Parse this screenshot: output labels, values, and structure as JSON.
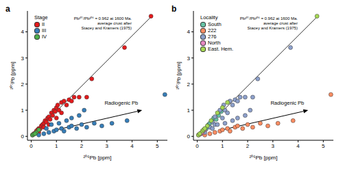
{
  "chart_data": [
    {
      "type": "scatter",
      "title": "a",
      "x_label": "²⁰⁶Pb [ppm]",
      "y_label": "²⁰⁷Pb [ppm]",
      "xlim": [
        -0.15,
        5.4
      ],
      "ylim": [
        -0.15,
        4.8
      ],
      "xticks": [
        0,
        1,
        2,
        3,
        4,
        5
      ],
      "yticks": [
        0,
        1,
        2,
        3,
        4
      ],
      "grid": false,
      "legend": "upper left",
      "legend_title": "Stage",
      "marker": "circle",
      "annotations": [
        "Pb²⁰⁷/Pb²⁰⁶ = 0.962 at 1600 Ma.",
        "average crust after",
        "Stacey and Kramers (1975)"
      ],
      "reference_line": {
        "x": [
          0,
          4.8
        ],
        "values": [
          0,
          4.62
        ],
        "color": "#000000"
      },
      "arrow": {
        "label": "Radiogenic Pb",
        "x": [
          1.0,
          4.4
        ],
        "values": [
          0.25,
          1.0
        ],
        "color": "#000000"
      },
      "series": [
        {
          "name": "II",
          "color": "#e41a1c",
          "x": [
            0.05,
            0.1,
            0.15,
            0.2,
            0.25,
            0.3,
            0.35,
            0.4,
            0.45,
            0.5,
            0.55,
            0.6,
            0.65,
            0.7,
            0.75,
            0.8,
            0.85,
            0.9,
            0.95,
            1.0,
            1.05,
            1.1,
            1.2,
            1.3,
            1.4,
            1.5,
            1.6,
            1.2,
            1.7,
            1.9,
            2.2,
            2.4,
            3.7,
            4.75,
            0.3,
            0.5,
            0.7,
            1.0
          ],
          "values": [
            0.05,
            0.1,
            0.12,
            0.2,
            0.25,
            0.3,
            0.28,
            0.4,
            0.45,
            0.5,
            0.6,
            0.55,
            0.7,
            0.75,
            0.65,
            0.9,
            0.8,
            1.0,
            0.95,
            1.1,
            1.2,
            1.0,
            1.3,
            1.35,
            1.2,
            1.4,
            1.35,
            0.9,
            1.5,
            1.5,
            1.5,
            2.2,
            3.4,
            4.6,
            0.15,
            0.35,
            0.45,
            0.7
          ]
        },
        {
          "name": "III",
          "color": "#377eb8",
          "x": [
            0.3,
            0.5,
            0.7,
            0.9,
            1.0,
            1.2,
            1.3,
            1.5,
            1.6,
            1.8,
            2.0,
            2.2,
            2.5,
            2.8,
            3.2,
            3.8,
            5.3,
            0.6,
            0.8,
            1.1,
            1.4,
            1.6,
            1.9,
            2.1
          ],
          "values": [
            0.05,
            0.1,
            0.15,
            0.2,
            0.25,
            0.3,
            0.2,
            0.35,
            0.4,
            0.3,
            0.45,
            0.35,
            0.5,
            0.4,
            0.5,
            0.6,
            1.6,
            0.3,
            0.45,
            0.5,
            0.6,
            0.7,
            0.8,
            1.0
          ]
        },
        {
          "name": "IV",
          "color": "#4daf4a",
          "x": [
            0.05,
            0.1,
            0.2,
            0.3,
            0.15
          ],
          "values": [
            0.05,
            0.08,
            0.15,
            0.25,
            0.1
          ]
        }
      ]
    },
    {
      "type": "scatter",
      "title": "b",
      "x_label": "²⁰⁶Pb [ppm]",
      "y_label": "²⁰⁷Pb [ppm]",
      "xlim": [
        -0.15,
        5.4
      ],
      "ylim": [
        -0.15,
        4.8
      ],
      "xticks": [
        0,
        1,
        2,
        3,
        4,
        5
      ],
      "yticks": [
        0,
        1,
        2,
        3,
        4
      ],
      "grid": false,
      "legend": "upper left",
      "legend_title": "Locality",
      "marker": "circle",
      "annotations": [
        "Pb²⁰⁷/Pb²⁰⁶ = 0.962 at 1600 Ma.",
        "average crust after",
        "Stacey and Kramers (1975)"
      ],
      "reference_line": {
        "x": [
          0,
          4.8
        ],
        "values": [
          0,
          4.62
        ],
        "color": "#000000"
      },
      "arrow": {
        "label": "Radiogenic Pb",
        "x": [
          1.0,
          4.4
        ],
        "values": [
          0.25,
          1.0
        ],
        "color": "#000000"
      },
      "series": [
        {
          "name": "South",
          "color": "#66c2a5",
          "x": [
            0.15,
            0.35,
            0.45,
            0.65,
            0.75,
            0.85,
            0.95,
            0.5
          ],
          "values": [
            0.12,
            0.28,
            0.45,
            0.7,
            0.65,
            0.8,
            0.95,
            0.5
          ]
        },
        {
          "name": "222",
          "color": "#fc8d62",
          "x": [
            0.3,
            0.5,
            0.7,
            0.9,
            1.0,
            1.2,
            1.3,
            1.5,
            1.6,
            1.8,
            2.0,
            2.2,
            2.5,
            2.8,
            3.2,
            3.8,
            5.3
          ],
          "values": [
            0.05,
            0.1,
            0.15,
            0.2,
            0.25,
            0.3,
            0.2,
            0.35,
            0.4,
            0.3,
            0.45,
            0.35,
            0.5,
            0.4,
            0.5,
            0.6,
            1.6
          ]
        },
        {
          "name": "276",
          "color": "#8da0cb",
          "x": [
            3.7,
            1.3,
            1.4,
            1.5,
            1.6,
            1.7,
            1.9,
            2.2,
            2.4,
            0.6,
            0.7,
            0.9,
            1.05,
            1.1,
            1.2,
            0.5,
            0.7,
            1.0,
            0.6,
            0.8,
            1.1,
            1.4,
            1.6,
            1.9,
            2.1,
            0.3
          ],
          "values": [
            3.4,
            1.35,
            1.2,
            1.4,
            1.35,
            1.5,
            1.5,
            1.5,
            2.2,
            0.55,
            0.75,
            1.0,
            1.2,
            1.0,
            0.9,
            0.35,
            0.45,
            0.7,
            0.3,
            0.45,
            0.5,
            0.6,
            0.7,
            0.8,
            1.0,
            0.15
          ]
        },
        {
          "name": "North",
          "color": "#e78ac3",
          "x": [
            0.15,
            0.1,
            0.05,
            0.2,
            0.3
          ],
          "values": [
            0.1,
            0.08,
            0.05,
            0.15,
            0.25
          ]
        },
        {
          "name": "East. Hem.",
          "color": "#a6d854",
          "x": [
            4.75,
            0.05,
            0.2,
            0.4,
            0.55,
            0.8,
            1.0,
            1.2,
            0.25,
            0.1,
            0.3
          ],
          "values": [
            4.6,
            0.05,
            0.2,
            0.4,
            0.6,
            0.9,
            1.1,
            1.3,
            0.25,
            0.1,
            0.3
          ]
        }
      ]
    }
  ]
}
